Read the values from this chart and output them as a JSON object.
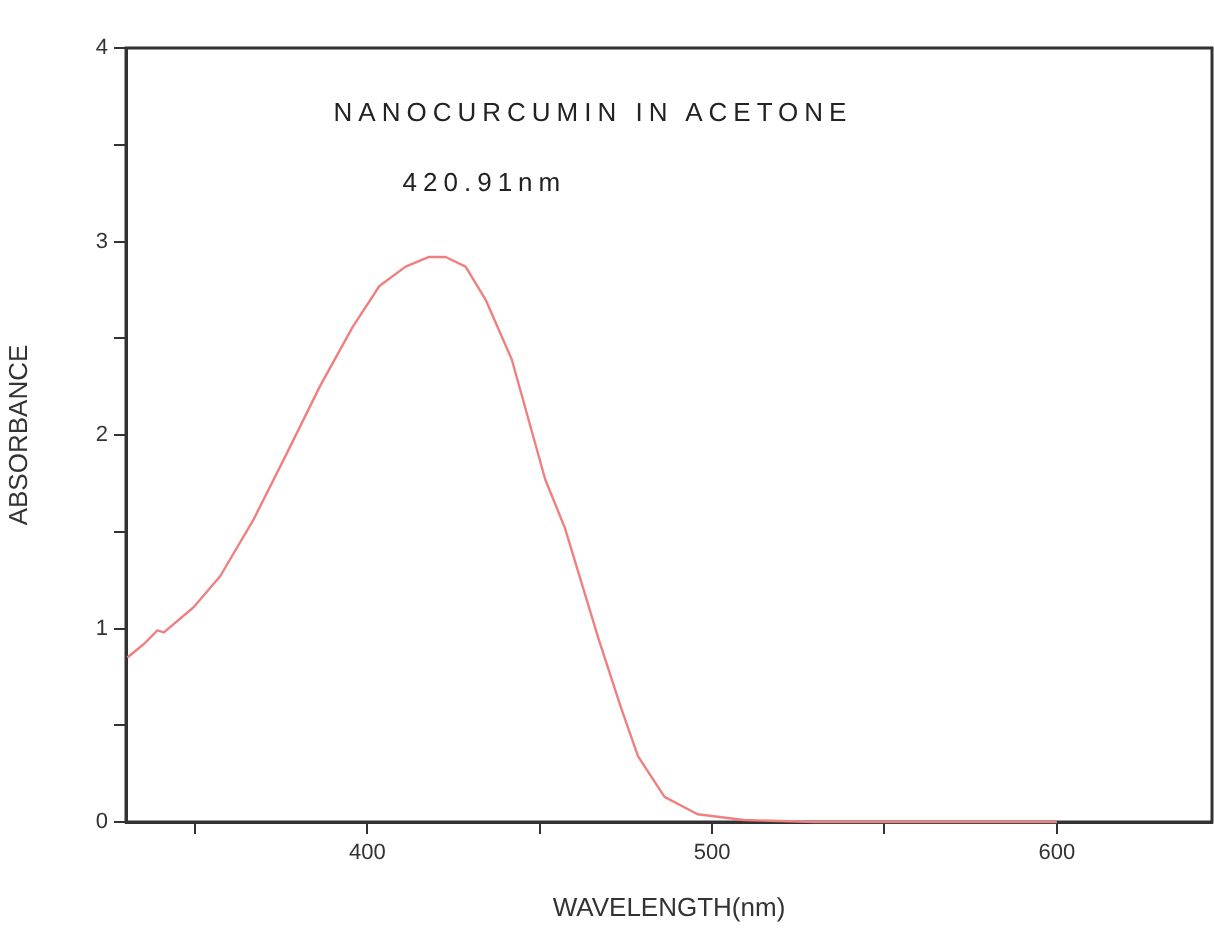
{
  "chart_data": {
    "type": "line",
    "xlabel": "WAVELENGTH(nm)",
    "ylabel": "ABSORBANCE",
    "annotations": [
      "NANOCURCUMIN IN ACETONE",
      "420.91nm"
    ],
    "xlim": [
      330,
      645
    ],
    "ylim": [
      0,
      4
    ],
    "xticks": [
      {
        "value": 350,
        "label": null
      },
      400,
      {
        "value": 450,
        "label": null
      },
      500,
      {
        "value": 550,
        "label": null
      },
      600
    ],
    "yticks": [
      0,
      {
        "value": 0.5,
        "label": null
      },
      1,
      {
        "value": 1.5,
        "label": null
      },
      2,
      {
        "value": 2.5,
        "label": null
      },
      3,
      {
        "value": 3.5,
        "label": null
      },
      4
    ],
    "grid": false,
    "legend": false,
    "marker": "none",
    "line_style": "solid",
    "series": [
      {
        "color": "#f08080",
        "x": [
          330.4,
          335.2,
          339.1,
          341,
          349.6,
          357.3,
          366.9,
          376.5,
          386.2,
          395.8,
          403.5,
          411.1,
          417.9,
          422.7,
          428.5,
          434.3,
          441.9,
          451.6,
          457.3,
          467,
          473.6,
          478.5,
          486.2,
          495.8,
          509.2,
          530,
          560,
          600
        ],
        "values": [
          0.85,
          0.92,
          0.99,
          0.98,
          1.11,
          1.27,
          1.56,
          1.9,
          2.25,
          2.56,
          2.77,
          2.87,
          2.92,
          2.92,
          2.87,
          2.7,
          2.39,
          1.77,
          1.52,
          0.95,
          0.59,
          0.34,
          0.13,
          0.04,
          0.01,
          0,
          0,
          0
        ]
      }
    ]
  }
}
